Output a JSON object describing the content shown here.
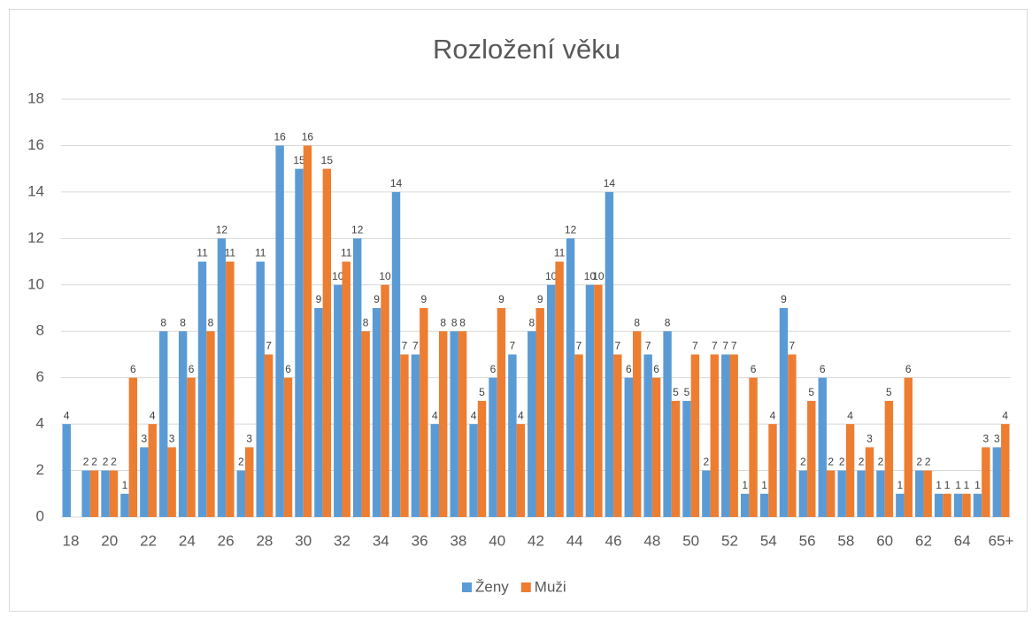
{
  "chart_data": {
    "type": "bar",
    "title": "Rozložení věku",
    "categories": [
      "18",
      null,
      "20",
      null,
      "22",
      null,
      "24",
      null,
      "26",
      null,
      "28",
      null,
      "30",
      null,
      "32",
      null,
      "34",
      null,
      "36",
      null,
      "38",
      null,
      "40",
      null,
      "42",
      null,
      "44",
      null,
      "46",
      null,
      "48",
      null,
      "50",
      null,
      "52",
      null,
      "54",
      null,
      "56",
      null,
      "58",
      null,
      "60",
      null,
      "62",
      null,
      "64",
      null,
      "65+"
    ],
    "series": [
      {
        "name": "Ženy",
        "color": "#5b9bd5",
        "values": [
          4,
          2,
          2,
          1,
          3,
          8,
          8,
          11,
          12,
          2,
          11,
          16,
          15,
          9,
          10,
          12,
          9,
          14,
          7,
          4,
          8,
          4,
          6,
          7,
          8,
          10,
          12,
          10,
          14,
          6,
          7,
          8,
          5,
          2,
          7,
          1,
          1,
          9,
          2,
          6,
          2,
          2,
          2,
          1,
          2,
          1,
          1,
          1,
          3
        ]
      },
      {
        "name": "Muži",
        "color": "#ed7d31",
        "values": [
          0,
          2,
          2,
          6,
          4,
          3,
          6,
          8,
          11,
          3,
          7,
          6,
          16,
          15,
          11,
          8,
          10,
          7,
          9,
          8,
          8,
          5,
          9,
          4,
          9,
          11,
          7,
          10,
          7,
          8,
          6,
          5,
          7,
          7,
          7,
          6,
          4,
          7,
          5,
          2,
          4,
          3,
          5,
          6,
          2,
          1,
          1,
          3,
          4
        ]
      }
    ],
    "ylim": [
      0,
      18
    ],
    "yticks": [
      0,
      2,
      4,
      6,
      8,
      10,
      12,
      14,
      16,
      18
    ],
    "grid": true,
    "legend": "bottom"
  }
}
